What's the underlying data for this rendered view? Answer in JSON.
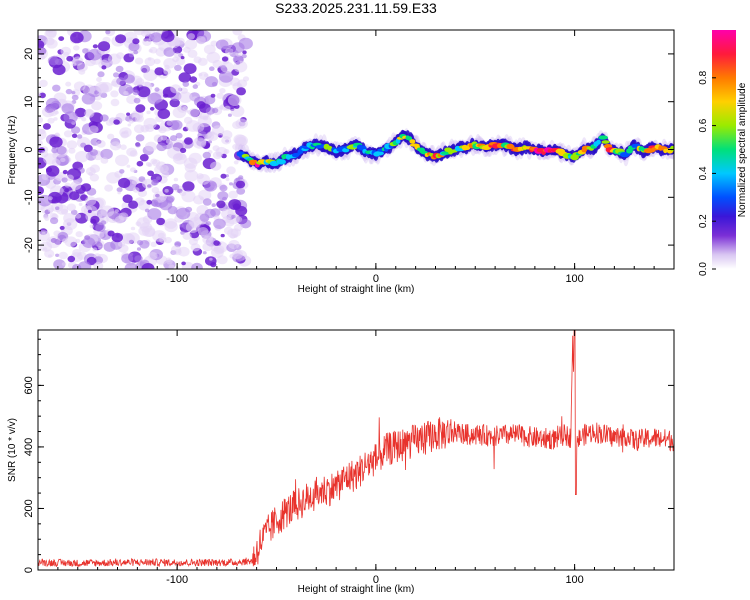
{
  "title": "S233.2025.231.11.59.E33",
  "colors": {
    "snr_line": "#e8322c",
    "frame": "#000000",
    "noise_purple": "#7b2fd6"
  },
  "chart_data": [
    {
      "type": "heatmap",
      "name": "spectrogram",
      "xlabel": "Height of straight line (km)",
      "ylabel": "Frequency (Hz)",
      "xlim": [
        -170,
        150
      ],
      "ylim": [
        -25,
        25
      ],
      "xticks": [
        -100,
        0,
        100
      ],
      "yticks": [
        -20,
        -10,
        0,
        10,
        20
      ],
      "colorbar": {
        "label": "Normalized spectral amplitude",
        "range": [
          0.0,
          1.0
        ],
        "ticks": [
          0.0,
          0.2,
          0.4,
          0.6,
          0.8
        ],
        "colormap": [
          "#ffffff",
          "#e6d5f7",
          "#7b2fd6",
          "#3a16d8",
          "#0044ff",
          "#00ccff",
          "#00e07a",
          "#9aeb00",
          "#ffd000",
          "#ff7a00",
          "#ff1a3c",
          "#ff00aa"
        ]
      },
      "noise_region_x": [
        -170,
        -65
      ],
      "signal_track": {
        "x": [
          -68,
          -60,
          -55,
          -50,
          -45,
          -40,
          -35,
          -30,
          -25,
          -20,
          -15,
          -10,
          -5,
          0,
          5,
          10,
          14,
          18,
          22,
          26,
          30,
          35,
          40,
          45,
          50,
          55,
          60,
          65,
          70,
          75,
          80,
          85,
          90,
          95,
          100,
          105,
          110,
          114,
          118,
          122,
          126,
          130,
          135,
          140,
          145,
          150
        ],
        "freq": [
          -1,
          -3,
          -2.5,
          -3,
          -1.5,
          -1,
          0.5,
          1,
          0.5,
          -0.5,
          0,
          1,
          -0.5,
          -1,
          0,
          1.5,
          3,
          2,
          0,
          -1,
          -1.5,
          -0.5,
          0,
          0.5,
          1,
          0.5,
          1,
          1,
          0,
          0.5,
          0,
          -0.5,
          0,
          -1,
          -1.5,
          0,
          0.5,
          2.5,
          0,
          -0.5,
          -1,
          1,
          -0.5,
          0.5,
          0,
          0
        ],
        "amplitude": [
          0.3,
          0.9,
          0.6,
          0.5,
          0.4,
          0.4,
          0.5,
          0.4,
          0.5,
          0.45,
          0.5,
          0.5,
          0.45,
          0.45,
          0.5,
          0.55,
          0.6,
          0.55,
          0.6,
          0.65,
          0.85,
          0.6,
          0.6,
          0.65,
          0.7,
          0.75,
          0.9,
          0.75,
          0.9,
          0.8,
          0.95,
          1.0,
          0.85,
          0.7,
          0.5,
          0.8,
          0.45,
          0.4,
          0.9,
          0.55,
          0.5,
          0.4,
          0.7,
          0.9,
          0.85,
          0.6
        ]
      }
    },
    {
      "type": "line",
      "name": "snr",
      "xlabel": "Height of straight line (km)",
      "ylabel": "SNR (10 * v/v)",
      "xlim": [
        -170,
        150
      ],
      "ylim": [
        0,
        780
      ],
      "xticks": [
        -100,
        0,
        100
      ],
      "yticks": [
        0,
        200,
        400,
        600
      ],
      "series": [
        {
          "name": "SNR",
          "x": [
            -170,
            -150,
            -120,
            -90,
            -70,
            -62,
            -58,
            -55,
            -50,
            -45,
            -40,
            -35,
            -30,
            -25,
            -20,
            -15,
            -10,
            -5,
            0,
            5,
            10,
            15,
            20,
            25,
            30,
            35,
            40,
            45,
            50,
            60,
            70,
            80,
            90,
            95,
            98,
            99,
            100,
            101,
            103,
            105,
            110,
            115,
            120,
            125,
            130,
            140,
            150
          ],
          "y": [
            25,
            22,
            25,
            24,
            25,
            30,
            90,
            120,
            160,
            190,
            210,
            230,
            250,
            260,
            270,
            300,
            310,
            340,
            360,
            390,
            400,
            410,
            420,
            430,
            440,
            445,
            450,
            440,
            440,
            435,
            440,
            430,
            425,
            440,
            430,
            760,
            500,
            420,
            430,
            440,
            450,
            440,
            430,
            440,
            420,
            430,
            420
          ]
        }
      ]
    }
  ]
}
